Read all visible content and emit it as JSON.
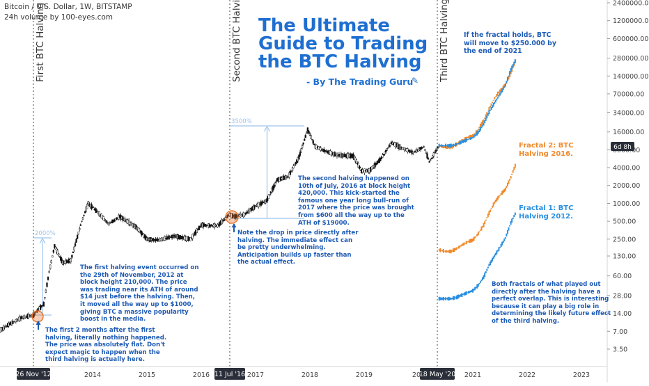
{
  "header": {
    "symbol_line": "Bitcoin / U.S. Dollar, 1W, BITSTAMP",
    "volume_line": "24h volume by 100-eyes.com"
  },
  "title": {
    "line1": "The Ultimate",
    "line2": "Guide to Trading",
    "line3": "the BTC Halving",
    "byline": "- By The Trading Guru"
  },
  "colors": {
    "title": "#1e6fd1",
    "note": "#1e5bb5",
    "fractal1": "#2a8fe0",
    "fractal2": "#f0892a",
    "measure": "#9ec4ec",
    "circle": "#e8742a",
    "candle": "#111111"
  },
  "halvings": [
    {
      "label": "First BTC Halving",
      "date_tag": "26 Nov '12"
    },
    {
      "label": "Second BTC Halving",
      "date_tag": "11 Jul '16"
    },
    {
      "label": "Third BTC Halving",
      "date_tag": "18 May '20"
    }
  ],
  "notes": {
    "fractal_target": "If the fractal holds, BTC\nwill move to $250.000 by\nthe end of 2021",
    "first_halving": "The first halving event occurred on\nthe 29th of November, 2012 at\nblock height 210,000. The price\nwas trading near its ATH of around\n$14 just before the halving. Then,\nit moved all the way up to $1000,\ngiving BTC a massive popularity\nboost in the media.",
    "first_two_months": "The first 2 months after the first\nhalving, literally nothing happened.\nThe price was absolutely flat. Don't\nexpect magic to happen when the\nthird halving is actually here.",
    "second_halving": "The second halving happened on\n10th of July, 2016 at block height\n420,000. This kick-started the\nfamous one year long bull-run of\n2017 where the price was brought\nfrom $600 all the way up to the\nATH of $19000.",
    "drop_note": "Note the drop in price directly after\nhalving. The immediate effect can\nbe pretty underwhelming.\nAnticipation builds up faster than\nthe actual effect.",
    "both_fractals": "Both fractals of what played out\ndirectly after the halving have a\nperfect overlap. This is interesting\nbecause it can play a big role in\ndetermining the likely future effect\nof the third halving."
  },
  "fractal_labels": {
    "fractal2": "Fractal 2: BTC\nHalving 2016.",
    "fractal1": "Fractal 1: BTC\nHalving 2012."
  },
  "measure_labels": {
    "first": "2000%",
    "second": "3500%"
  },
  "price_tag": "6d 8h",
  "chart_data": {
    "type": "line",
    "title": "Bitcoin / U.S. Dollar, 1W, BITSTAMP",
    "y_scale": "log",
    "y_ticks": [
      "2400000.00",
      "1200000.00",
      "600000.00",
      "280000.00",
      "140000.00",
      "70000.00",
      "34000.00",
      "16000.00",
      "8000.00",
      "4000.00",
      "2000.00",
      "1000.00",
      "500.00",
      "250.00",
      "130.00",
      "60.00",
      "28.00",
      "14.00",
      "7.00",
      "3.50"
    ],
    "x_ticks": [
      "2014",
      "2015",
      "2016",
      "2017",
      "2018",
      "2019",
      "202",
      "2021",
      "2022",
      "2023"
    ],
    "series": [
      {
        "name": "BTC/USD",
        "x": [
          2011.8,
          2012.1,
          2012.4,
          2012.7,
          2012.9,
          2013.1,
          2013.2,
          2013.3,
          2013.45,
          2013.6,
          2013.8,
          2013.92,
          2014.1,
          2014.3,
          2014.5,
          2014.8,
          2015.0,
          2015.2,
          2015.5,
          2015.8,
          2016.0,
          2016.3,
          2016.52,
          2016.6,
          2016.8,
          2017.0,
          2017.2,
          2017.4,
          2017.6,
          2017.8,
          2017.96,
          2018.1,
          2018.3,
          2018.5,
          2018.8,
          2018.95,
          2019.1,
          2019.3,
          2019.5,
          2019.7,
          2019.9,
          2020.1,
          2020.2,
          2020.38
        ],
        "values": [
          4.9,
          5.5,
          8.5,
          12,
          13,
          20,
          70,
          190,
          100,
          110,
          500,
          1000,
          700,
          450,
          600,
          400,
          250,
          240,
          280,
          250,
          430,
          420,
          650,
          600,
          650,
          900,
          1100,
          2500,
          2800,
          6000,
          17500,
          9000,
          7500,
          6500,
          6300,
          3500,
          3600,
          5500,
          10500,
          8500,
          7200,
          9000,
          5000,
          9500
        ]
      },
      {
        "name": "Fractal 2: BTC Halving 2016.",
        "x": [
          2020.38,
          2020.5,
          2020.6,
          2020.7,
          2020.8,
          2020.9,
          2021.0,
          2021.1,
          2021.2,
          2021.3,
          2021.4,
          2021.5,
          2021.6,
          2021.7,
          2021.8
        ],
        "values": [
          9500,
          9000,
          9000,
          10000,
          11500,
          13000,
          14000,
          18000,
          25000,
          40000,
          60000,
          80000,
          100000,
          160000,
          280000
        ]
      },
      {
        "name": "Fractal 1: BTC Halving 2012.",
        "x": [
          2020.38,
          2020.5,
          2020.6,
          2020.7,
          2020.8,
          2020.9,
          2021.0,
          2021.1,
          2021.2,
          2021.3,
          2021.4,
          2021.5,
          2021.6,
          2021.7,
          2021.8
        ],
        "values": [
          9500,
          9500,
          9500,
          10000,
          11000,
          12000,
          13000,
          16000,
          22000,
          35000,
          50000,
          70000,
          100000,
          180000,
          280000
        ]
      }
    ]
  }
}
